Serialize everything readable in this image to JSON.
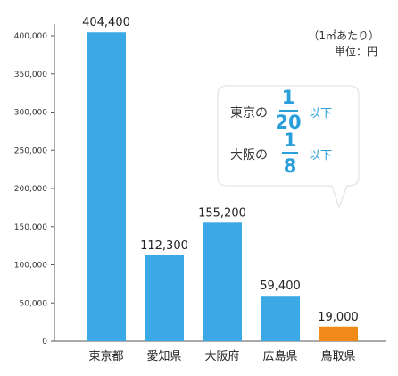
{
  "chart_data": {
    "type": "bar",
    "categories": [
      "東京都",
      "愛知県",
      "大阪府",
      "広島県",
      "鳥取県"
    ],
    "values": [
      404400,
      112300,
      155200,
      59400,
      19000
    ],
    "value_labels": [
      "404,400",
      "112,300",
      "155,200",
      "59,400",
      "19,000"
    ],
    "colors": [
      "#3ba9e6",
      "#3ba9e6",
      "#3ba9e6",
      "#3ba9e6",
      "#f28a1a"
    ],
    "ylim": [
      0,
      400000
    ],
    "yticks": [
      0,
      50000,
      100000,
      150000,
      200000,
      250000,
      300000,
      350000,
      400000
    ],
    "ytick_labels": [
      "0",
      "50,000",
      "100,000",
      "150,000",
      "200,000",
      "250,000",
      "300,000",
      "350,000",
      "400,000"
    ],
    "unit_line1": "（1㎡あたり）",
    "unit_line2": "単位：円",
    "callout": {
      "rows": [
        {
          "label": "東京の",
          "numerator": "1",
          "denominator": "20",
          "suffix": "以下"
        },
        {
          "label": "大阪の",
          "numerator": "1",
          "denominator": "8",
          "suffix": "以下"
        }
      ]
    }
  }
}
